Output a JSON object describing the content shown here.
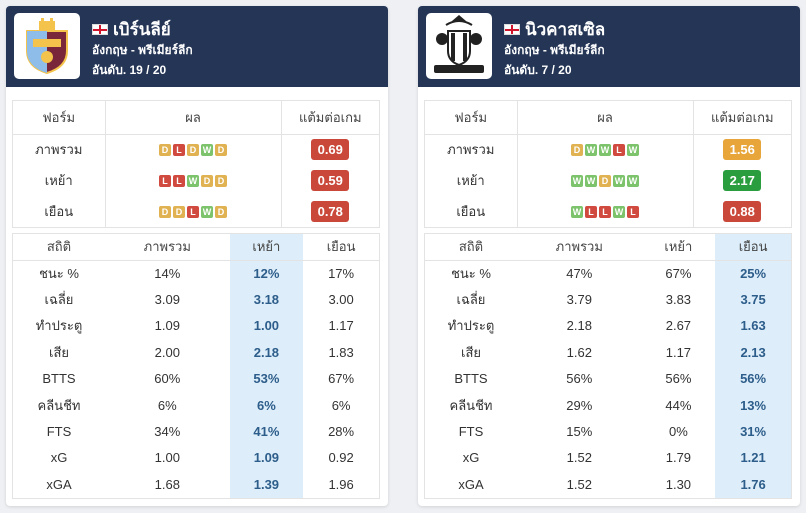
{
  "colors": {
    "header_bg": "#243556",
    "win": "#7cc36b",
    "draw": "#e0b252",
    "loss": "#d14a3f",
    "highlight": "#ddeefa",
    "ppg_red": "#c9483a",
    "ppg_orange": "#e7a53a",
    "ppg_green": "#2a9d3f"
  },
  "form_headers": [
    "ฟอร์ม",
    "ผล",
    "แต้มต่อเกม"
  ],
  "stat_headers": [
    "สถิติ",
    "ภาพรวม",
    "เหย้า",
    "เยือน"
  ],
  "teams": [
    {
      "name": "เบิร์นลีย์",
      "league": "อังกฤษ - พรีเมียร์ลีก",
      "rank": "อันดับ. 19 / 20",
      "logo_icon": "burnley-crest-icon",
      "highlight_col": 2,
      "form": [
        {
          "label": "ภาพรวม",
          "results": [
            "D",
            "L",
            "D",
            "W",
            "D"
          ],
          "ppg": "0.69",
          "ppg_color": "#c9483a"
        },
        {
          "label": "เหย้า",
          "results": [
            "L",
            "L",
            "W",
            "D",
            "D"
          ],
          "ppg": "0.59",
          "ppg_color": "#c9483a"
        },
        {
          "label": "เยือน",
          "results": [
            "D",
            "D",
            "L",
            "W",
            "D"
          ],
          "ppg": "0.78",
          "ppg_color": "#c9483a"
        }
      ],
      "stats": [
        [
          "ชนะ %",
          "14%",
          "12%",
          "17%"
        ],
        [
          "เฉลี่ย",
          "3.09",
          "3.18",
          "3.00"
        ],
        [
          "ทำประตู",
          "1.09",
          "1.00",
          "1.17"
        ],
        [
          "เสีย",
          "2.00",
          "2.18",
          "1.83"
        ],
        [
          "BTTS",
          "60%",
          "53%",
          "67%"
        ],
        [
          "คลีนชีท",
          "6%",
          "6%",
          "6%"
        ],
        [
          "FTS",
          "34%",
          "41%",
          "28%"
        ],
        [
          "xG",
          "1.00",
          "1.09",
          "0.92"
        ],
        [
          "xGA",
          "1.68",
          "1.39",
          "1.96"
        ]
      ]
    },
    {
      "name": "นิวคาสเซิล",
      "league": "อังกฤษ - พรีเมียร์ลีก",
      "rank": "อันดับ. 7 / 20",
      "logo_icon": "newcastle-crest-icon",
      "highlight_col": 3,
      "form": [
        {
          "label": "ภาพรวม",
          "results": [
            "D",
            "W",
            "W",
            "L",
            "W"
          ],
          "ppg": "1.56",
          "ppg_color": "#e7a53a"
        },
        {
          "label": "เหย้า",
          "results": [
            "W",
            "W",
            "D",
            "W",
            "W"
          ],
          "ppg": "2.17",
          "ppg_color": "#2a9d3f"
        },
        {
          "label": "เยือน",
          "results": [
            "W",
            "L",
            "L",
            "W",
            "L"
          ],
          "ppg": "0.88",
          "ppg_color": "#c9483a"
        }
      ],
      "stats": [
        [
          "ชนะ %",
          "47%",
          "67%",
          "25%"
        ],
        [
          "เฉลี่ย",
          "3.79",
          "3.83",
          "3.75"
        ],
        [
          "ทำประตู",
          "2.18",
          "2.67",
          "1.63"
        ],
        [
          "เสีย",
          "1.62",
          "1.17",
          "2.13"
        ],
        [
          "BTTS",
          "56%",
          "56%",
          "56%"
        ],
        [
          "คลีนชีท",
          "29%",
          "44%",
          "13%"
        ],
        [
          "FTS",
          "15%",
          "0%",
          "31%"
        ],
        [
          "xG",
          "1.52",
          "1.79",
          "1.21"
        ],
        [
          "xGA",
          "1.52",
          "1.30",
          "1.76"
        ]
      ]
    }
  ]
}
